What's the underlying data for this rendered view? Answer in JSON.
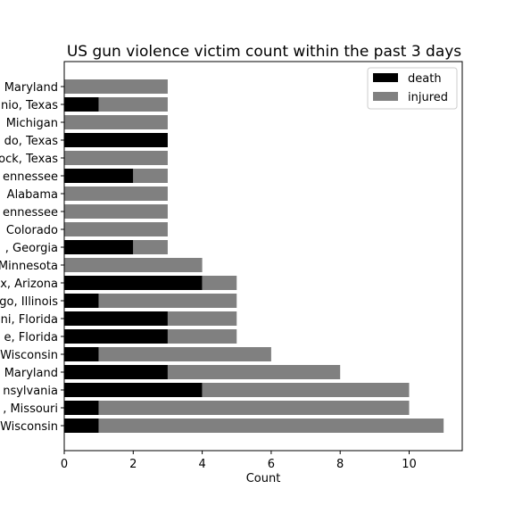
{
  "chart_data": {
    "type": "bar",
    "orientation": "horizontal",
    "stacked": true,
    "title": "US gun violence victim count within the past 3 days",
    "xlabel": "Count",
    "ylabel": "",
    "xlim": [
      0,
      11.55
    ],
    "xticks": [
      0,
      2,
      4,
      6,
      8,
      10
    ],
    "xtick_labels": [
      "0",
      "2",
      "4",
      "6",
      "8",
      "10"
    ],
    "grid": false,
    "legend_position": "top-right",
    "categories": [
      "Wisconsin",
      ", Missouri",
      "nsylvania",
      "Maryland",
      "Wisconsin",
      "e, Florida",
      "ni, Florida",
      "go, Illinois",
      "x, Arizona",
      "Minnesota",
      ", Georgia",
      "Colorado",
      "ennessee",
      "Alabama",
      "ennessee",
      "ock, Texas",
      "do, Texas",
      "Michigan",
      "nio, Texas",
      "Maryland"
    ],
    "series": [
      {
        "name": "death",
        "color": "#000000",
        "values": [
          1,
          1,
          4,
          3,
          1,
          3,
          3,
          1,
          4,
          0,
          2,
          0,
          0,
          0,
          2,
          0,
          3,
          0,
          1,
          0
        ]
      },
      {
        "name": "injured",
        "color": "#808080",
        "values": [
          10,
          9,
          6,
          5,
          5,
          2,
          2,
          4,
          1,
          4,
          1,
          3,
          3,
          3,
          1,
          3,
          0,
          3,
          2,
          3
        ]
      }
    ]
  }
}
